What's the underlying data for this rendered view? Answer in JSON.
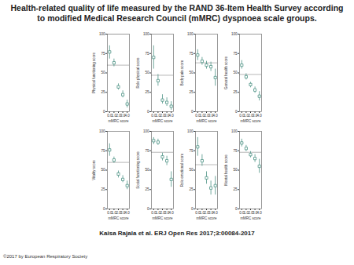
{
  "title": "Health-related quality of life measured by the RAND 36-Item Health Survey according to modified Medical Research Council (mMRC) dyspnoea scale groups.",
  "caption": "Kaisa Rajala et al. ERJ Open Res 2017;3:00084-2017",
  "footer": "©2017 by European Respiratory Society",
  "chart_data": [
    {
      "type": "scatter",
      "x_label": "mMRC score",
      "y_label": "Physical functioning score",
      "x": [
        0,
        1,
        2,
        3,
        4
      ],
      "values": [
        77,
        63,
        32,
        22,
        10
      ],
      "lower": [
        68,
        58,
        28,
        18,
        5
      ],
      "upper": [
        85,
        68,
        36,
        27,
        15
      ],
      "reference": 60,
      "xlim": [
        -0.5,
        4.5
      ],
      "xticks": [
        0,
        1,
        2,
        3,
        4
      ],
      "ylim": [
        0,
        100
      ],
      "yticks": [
        0,
        25,
        50,
        75,
        100
      ],
      "color": "#4f9487",
      "marker": "square"
    },
    {
      "type": "scatter",
      "x_label": "mMRC score",
      "y_label": "Role physical score",
      "x": [
        0,
        1,
        2,
        3,
        4
      ],
      "values": [
        70,
        40,
        15,
        12,
        7
      ],
      "lower": [
        55,
        33,
        10,
        7,
        2
      ],
      "upper": [
        85,
        48,
        22,
        18,
        13
      ],
      "reference": 47,
      "xlim": [
        -0.5,
        4.5
      ],
      "xticks": [
        0,
        1,
        2,
        3,
        4
      ],
      "ylim": [
        0,
        100
      ],
      "yticks": [
        0,
        25,
        50,
        75,
        100
      ],
      "color": "#4f9487",
      "marker": "square"
    },
    {
      "type": "scatter",
      "x_label": "mMRC score",
      "y_label": "Body pain score",
      "x": [
        0,
        1,
        2,
        3,
        4
      ],
      "values": [
        73,
        65,
        60,
        58,
        44
      ],
      "lower": [
        66,
        60,
        55,
        52,
        33
      ],
      "upper": [
        80,
        70,
        65,
        64,
        55
      ],
      "reference": 63,
      "xlim": [
        -0.5,
        4.5
      ],
      "xticks": [
        0,
        1,
        2,
        3,
        4
      ],
      "ylim": [
        0,
        100
      ],
      "yticks": [
        0,
        25,
        50,
        75,
        100
      ],
      "color": "#4f9487",
      "marker": "square"
    },
    {
      "type": "scatter",
      "x_label": "mMRC score",
      "y_label": "General health score",
      "x": [
        0,
        1,
        2,
        3,
        4
      ],
      "values": [
        60,
        45,
        35,
        28,
        20
      ],
      "lower": [
        55,
        41,
        31,
        24,
        14
      ],
      "upper": [
        66,
        49,
        38,
        32,
        26
      ],
      "reference": 48,
      "xlim": [
        -0.5,
        4.5
      ],
      "xticks": [
        0,
        1,
        2,
        3,
        4
      ],
      "ylim": [
        0,
        100
      ],
      "yticks": [
        0,
        25,
        50,
        75,
        100
      ],
      "color": "#4f9487",
      "marker": "square"
    },
    {
      "type": "scatter",
      "x_label": "mMRC score",
      "y_label": "Vitality score",
      "x": [
        0,
        1,
        2,
        3,
        4
      ],
      "values": [
        76,
        63,
        45,
        38,
        30
      ],
      "lower": [
        68,
        59,
        40,
        34,
        25
      ],
      "upper": [
        84,
        67,
        49,
        43,
        36
      ],
      "reference": 60,
      "xlim": [
        -0.5,
        4.5
      ],
      "xticks": [
        0,
        1,
        2,
        3,
        4
      ],
      "ylim": [
        0,
        100
      ],
      "yticks": [
        0,
        25,
        50,
        75,
        100
      ],
      "color": "#4f9487",
      "marker": "square"
    },
    {
      "type": "scatter",
      "x_label": "mMRC score",
      "y_label": "Social functioning score",
      "x": [
        0,
        1,
        2,
        3,
        4
      ],
      "values": [
        88,
        86,
        67,
        62,
        38
      ],
      "lower": [
        83,
        82,
        62,
        56,
        28
      ],
      "upper": [
        92,
        90,
        72,
        68,
        48
      ],
      "reference": 73,
      "xlim": [
        -0.5,
        4.5
      ],
      "xticks": [
        0,
        1,
        2,
        3,
        4
      ],
      "ylim": [
        0,
        100
      ],
      "yticks": [
        0,
        25,
        50,
        75,
        100
      ],
      "color": "#4f9487",
      "marker": "square"
    },
    {
      "type": "scatter",
      "x_label": "mMRC score",
      "y_label": "Role emotional score",
      "x": [
        0,
        1,
        2,
        3,
        4
      ],
      "values": [
        80,
        62,
        40,
        27,
        30
      ],
      "lower": [
        68,
        55,
        32,
        18,
        18
      ],
      "upper": [
        92,
        70,
        48,
        36,
        42
      ],
      "reference": 57,
      "xlim": [
        -0.5,
        4.5
      ],
      "xticks": [
        0,
        1,
        2,
        3,
        4
      ],
      "ylim": [
        0,
        100
      ],
      "yticks": [
        0,
        25,
        50,
        75,
        100
      ],
      "color": "#4f9487",
      "marker": "square"
    },
    {
      "type": "scatter",
      "x_label": "mMRC score",
      "y_label": "Mental health score",
      "x": [
        0,
        1,
        2,
        3,
        4
      ],
      "values": [
        85,
        78,
        70,
        65,
        55
      ],
      "lower": [
        80,
        74,
        66,
        60,
        46
      ],
      "upper": [
        90,
        82,
        74,
        70,
        64
      ],
      "reference": 73,
      "xlim": [
        -0.5,
        4.5
      ],
      "xticks": [
        0,
        1,
        2,
        3,
        4
      ],
      "ylim": [
        0,
        100
      ],
      "yticks": [
        0,
        25,
        50,
        75,
        100
      ],
      "color": "#4f9487",
      "marker": "square"
    }
  ]
}
